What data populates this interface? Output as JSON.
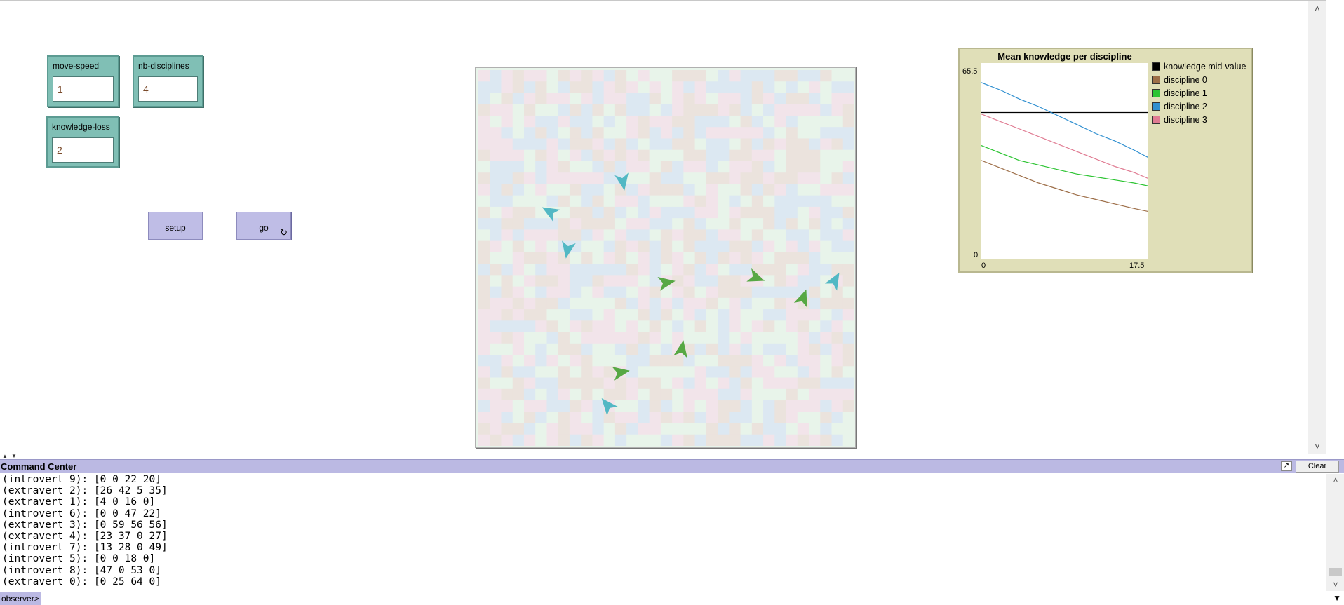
{
  "inputs": {
    "move_speed": {
      "label": "move-speed",
      "value": "1"
    },
    "nb_disciplines": {
      "label": "nb-disciplines",
      "value": "4"
    },
    "knowledge_loss": {
      "label": "knowledge-loss",
      "value": "2"
    }
  },
  "buttons": {
    "setup": "setup",
    "go": "go",
    "go_icon": "forever-icon"
  },
  "world": {
    "patch_colors": [
      "#e8f4ea",
      "#dce8f2",
      "#f2e4ea",
      "#ebe3dd"
    ],
    "turtle_colors": {
      "introvert": "#52b8c4",
      "extravert": "#57a844"
    }
  },
  "plot": {
    "title": "Mean knowledge per discipline",
    "y_max_label": "65.5",
    "y_min_label": "0",
    "x_min_label": "0",
    "x_max_label": "17.5",
    "legend": [
      {
        "label": "knowledge mid-value",
        "color": "#000000"
      },
      {
        "label": "discipline 0",
        "color": "#9d6e48"
      },
      {
        "label": "discipline 1",
        "color": "#2cc432"
      },
      {
        "label": "discipline 2",
        "color": "#2f8fd0"
      },
      {
        "label": "discipline 3",
        "color": "#e07b92"
      }
    ]
  },
  "chart_data": {
    "type": "line",
    "title": "Mean knowledge per discipline",
    "xlim": [
      0,
      17.5
    ],
    "ylim": [
      0,
      65.5
    ],
    "x": [
      0,
      2,
      4,
      6,
      8,
      10,
      12,
      14,
      16,
      17.5
    ],
    "series": [
      {
        "name": "knowledge mid-value",
        "color": "#000000",
        "values": [
          49,
          49,
          49,
          49,
          49,
          49,
          49,
          49,
          49,
          49
        ]
      },
      {
        "name": "discipline 0",
        "color": "#9d6e48",
        "values": [
          33,
          30.5,
          28,
          25.5,
          23.5,
          21.5,
          20,
          18.5,
          17,
          16
        ]
      },
      {
        "name": "discipline 1",
        "color": "#2cc432",
        "values": [
          38,
          35.5,
          33,
          31.5,
          30,
          28.5,
          27.5,
          26.5,
          25.5,
          24.5
        ]
      },
      {
        "name": "discipline 2",
        "color": "#2f8fd0",
        "values": [
          59,
          56.5,
          53.5,
          51,
          48,
          45,
          42,
          39.5,
          36.5,
          34
        ]
      },
      {
        "name": "discipline 3",
        "color": "#e07b92",
        "values": [
          48.5,
          46,
          43.5,
          41,
          38.5,
          36,
          33.5,
          31,
          29,
          27
        ]
      }
    ]
  },
  "command_center": {
    "title": "Command Center",
    "clear_label": "Clear",
    "popout_icon": "popout-icon",
    "output_lines": [
      "(introvert 9): [0 0 22 20]",
      "(extravert 2): [26 42 5 35]",
      "(extravert 1): [4 0 16 0]",
      "(introvert 6): [0 0 47 22]",
      "(extravert 3): [0 59 56 56]",
      "(extravert 4): [23 37 0 27]",
      "(introvert 7): [13 28 0 49]",
      "(introvert 5): [0 0 18 0]",
      "(introvert 8): [47 0 53 0]",
      "(extravert 0): [0 25 64 0]"
    ],
    "observer_label": "observer>",
    "command_value": ""
  }
}
